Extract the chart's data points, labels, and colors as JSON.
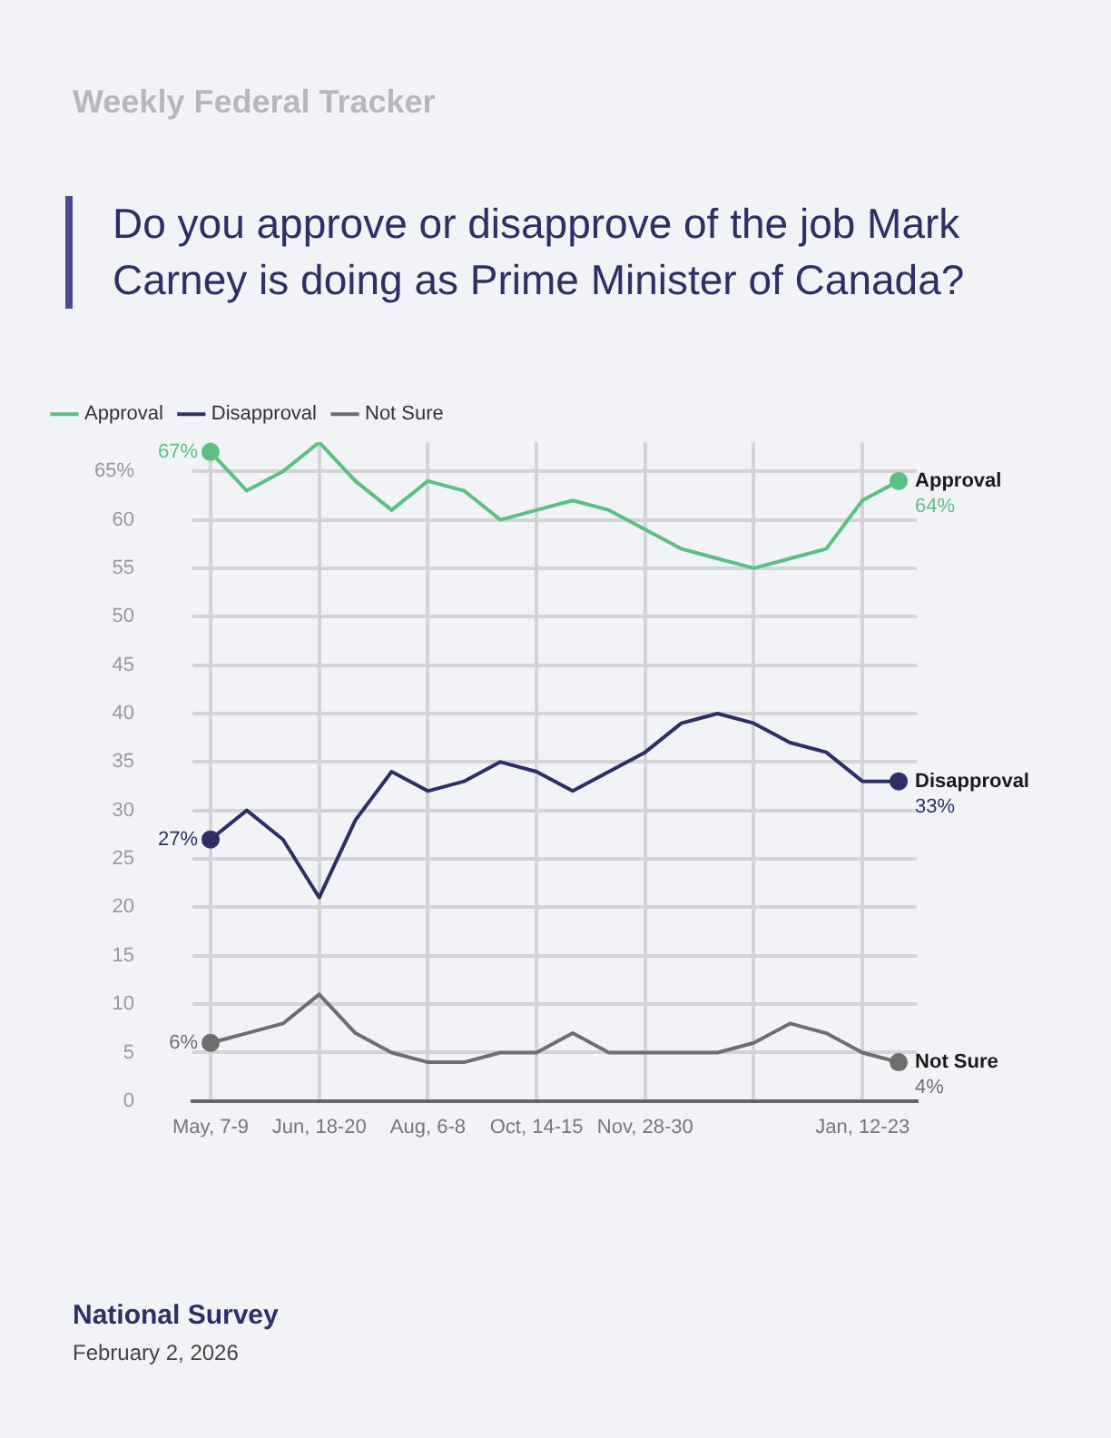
{
  "chart_data": {
    "type": "line",
    "subtitle": "Weekly Federal Tracker",
    "title": "Do you approve or disapprove of the job Mark Carney is doing as Prime Minister of Canada?",
    "categories": [
      "May, 7-9",
      null,
      null,
      "Jun, 18-20",
      null,
      null,
      "Aug, 6-8",
      null,
      null,
      "Oct, 14-15",
      null,
      null,
      "Nov, 28-30",
      null,
      null,
      null,
      null,
      null,
      "Jan, 12-23",
      null
    ],
    "series": [
      {
        "name": "Approval",
        "color": "#5cbf85",
        "values": [
          67,
          63,
          65,
          68,
          64,
          61,
          64,
          63,
          60,
          61,
          62,
          61,
          59,
          57,
          56,
          55,
          56,
          57,
          62,
          64
        ],
        "value_labels": [
          "67%",
          null,
          null,
          null,
          null,
          null,
          null,
          null,
          null,
          null,
          null,
          null,
          null,
          null,
          null,
          null,
          null,
          null,
          null,
          "64%"
        ]
      },
      {
        "name": "Disapproval",
        "color": "#2e2f66",
        "values": [
          27,
          30,
          27,
          21,
          29,
          34,
          32,
          33,
          35,
          34,
          32,
          34,
          36,
          39,
          40,
          39,
          37,
          36,
          33,
          33
        ],
        "value_labels": [
          "27%",
          null,
          null,
          null,
          null,
          null,
          null,
          null,
          null,
          null,
          null,
          null,
          null,
          null,
          null,
          null,
          null,
          null,
          null,
          "33%"
        ]
      },
      {
        "name": "Not Sure",
        "color": "#6e6e6e",
        "values": [
          6,
          7,
          8,
          11,
          7,
          5,
          4,
          4,
          5,
          5,
          7,
          5,
          5,
          5,
          5,
          6,
          8,
          7,
          5,
          4
        ],
        "value_labels": [
          "6%",
          null,
          null,
          null,
          null,
          null,
          null,
          null,
          null,
          null,
          null,
          null,
          null,
          null,
          null,
          null,
          null,
          null,
          null,
          "4%"
        ]
      }
    ],
    "ylim": [
      0,
      68
    ],
    "yticks": [
      0,
      5,
      10,
      15,
      20,
      25,
      30,
      35,
      40,
      45,
      50,
      55,
      60,
      {
        "value": 65,
        "label": "65%"
      }
    ],
    "grid": true,
    "legend": "top left",
    "line_style": "solid",
    "annotations": [
      "National Survey",
      "February 2, 2026"
    ]
  }
}
